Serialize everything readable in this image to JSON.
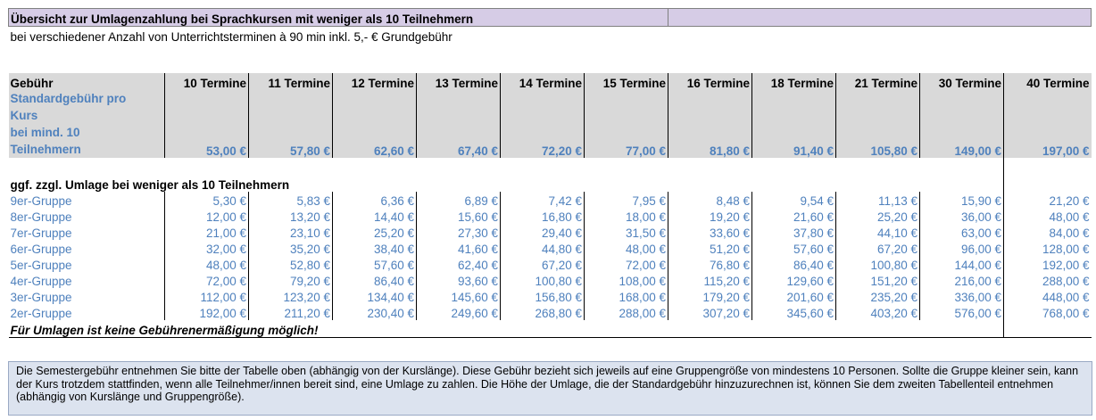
{
  "title": "Übersicht zur Umlagenzahlung bei Sprachkursen mit weniger als 10 Teilnehmern",
  "subtitle": "bei verschiedener Anzahl von Unterrichtsterminen à 90 min inkl. 5,- € Grundgebühr",
  "header": {
    "fee_label": "Gebühr",
    "columns": [
      "10 Termine",
      "11 Termine",
      "12 Termine",
      "13 Termine",
      "14 Termine",
      "15 Termine",
      "16 Termine",
      "18 Termine",
      "21 Termine",
      "30 Termine",
      "40 Termine"
    ]
  },
  "standard_fee": {
    "label_lines": [
      "Standardgebühr pro",
      "Kurs",
      "bei mind. 10",
      "Teilnehmern"
    ],
    "values": [
      "53,00 €",
      "57,80 €",
      "62,60 €",
      "67,40 €",
      "72,20 €",
      "77,00 €",
      "81,80 €",
      "91,40 €",
      "105,80 €",
      "149,00 €",
      "197,00 €"
    ]
  },
  "surcharge": {
    "heading": "ggf. zzgl. Umlage bei weniger als 10 Teilnehmern",
    "rows": [
      {
        "label": "9er-Gruppe",
        "values": [
          "5,30 €",
          "5,83 €",
          "6,36 €",
          "6,89 €",
          "7,42 €",
          "7,95 €",
          "8,48 €",
          "9,54 €",
          "11,13 €",
          "15,90 €",
          "21,20 €"
        ]
      },
      {
        "label": "8er-Gruppe",
        "values": [
          "12,00 €",
          "13,20 €",
          "14,40 €",
          "15,60 €",
          "16,80 €",
          "18,00 €",
          "19,20 €",
          "21,60 €",
          "25,20 €",
          "36,00 €",
          "48,00 €"
        ]
      },
      {
        "label": "7er-Gruppe",
        "values": [
          "21,00 €",
          "23,10 €",
          "25,20 €",
          "27,30 €",
          "29,40 €",
          "31,50 €",
          "33,60 €",
          "37,80 €",
          "44,10 €",
          "63,00 €",
          "84,00 €"
        ]
      },
      {
        "label": "6er-Gruppe",
        "values": [
          "32,00 €",
          "35,20 €",
          "38,40 €",
          "41,60 €",
          "44,80 €",
          "48,00 €",
          "51,20 €",
          "57,60 €",
          "67,20 €",
          "96,00 €",
          "128,00 €"
        ]
      },
      {
        "label": "5er-Gruppe",
        "values": [
          "48,00 €",
          "52,80 €",
          "57,60 €",
          "62,40 €",
          "67,20 €",
          "72,00 €",
          "76,80 €",
          "86,40 €",
          "100,80 €",
          "144,00 €",
          "192,00 €"
        ]
      },
      {
        "label": "4er-Gruppe",
        "values": [
          "72,00 €",
          "79,20 €",
          "86,40 €",
          "93,60 €",
          "100,80 €",
          "108,00 €",
          "115,20 €",
          "129,60 €",
          "151,20 €",
          "216,00 €",
          "288,00 €"
        ]
      },
      {
        "label": "3er-Gruppe",
        "values": [
          "112,00 €",
          "123,20 €",
          "134,40 €",
          "145,60 €",
          "156,80 €",
          "168,00 €",
          "179,20 €",
          "201,60 €",
          "235,20 €",
          "336,00 €",
          "448,00 €"
        ]
      },
      {
        "label": "2er-Gruppe",
        "values": [
          "192,00 €",
          "211,20 €",
          "230,40 €",
          "249,60 €",
          "268,80 €",
          "288,00 €",
          "307,20 €",
          "345,60 €",
          "403,20 €",
          "576,00 €",
          "768,00 €"
        ]
      }
    ],
    "note": "Für Umlagen ist keine Gebührenermäßigung möglich!"
  },
  "info_text": "Die Semestergebühr entnehmen Sie bitte der Tabelle oben (abhängig von der Kurslänge). Diese Gebühr bezieht sich jeweils auf eine Gruppengröße von mindestens 10 Personen. Sollte die Gruppe kleiner sein, kann der Kurs trotzdem stattfinden, wenn alle Teilnehmer/innen bereit sind, eine Umlage zu zahlen. Die Höhe der Umlage, die der Standardgebühr hinzuzurechnen ist, können Sie dem zweiten Tabellenteil entnehmen (abhängig von Kurslänge und Gruppengröße).",
  "colors": {
    "title_bg": "#d6cce6",
    "header_bg": "#d9d9d9",
    "value_blue": "#4f81bd",
    "info_bg": "#dce3ef"
  }
}
